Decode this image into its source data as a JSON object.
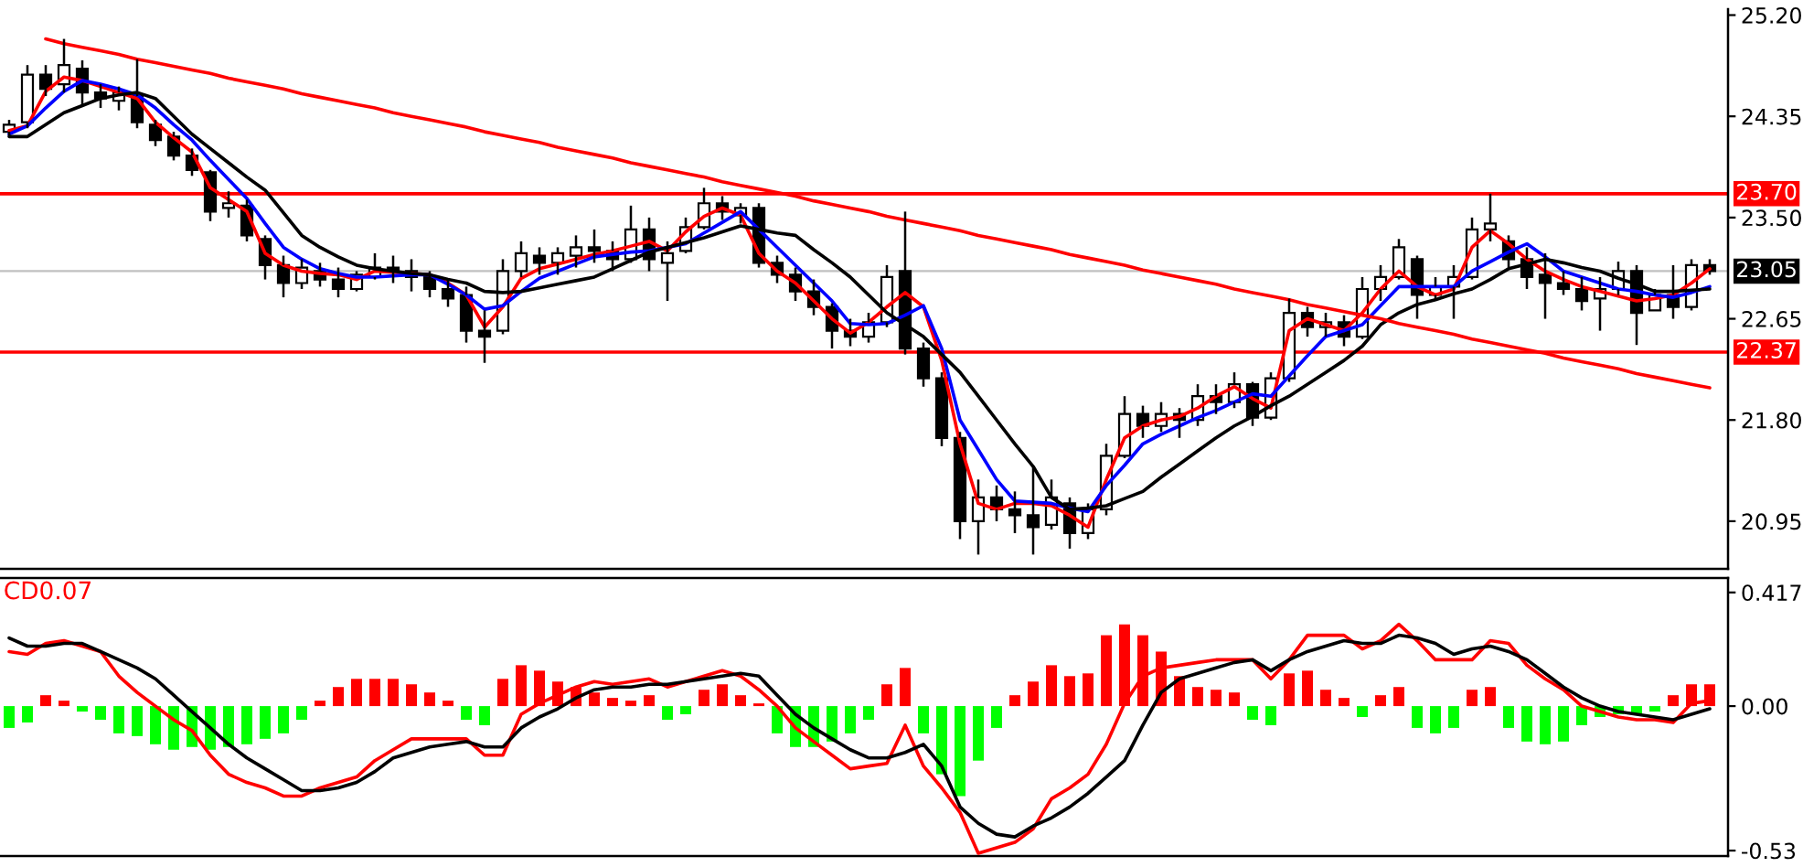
{
  "chart_data": [
    {
      "type": "candlestick",
      "categories": [
        null,
        null,
        null,
        null,
        null,
        null,
        null,
        null,
        null,
        null,
        null,
        null,
        null,
        null,
        null,
        null,
        null,
        null,
        null,
        null,
        null,
        null,
        null,
        null,
        null,
        null,
        null,
        null,
        null,
        null,
        null,
        null,
        null,
        null,
        null,
        null,
        null,
        null,
        null,
        null,
        null,
        null,
        null,
        null,
        null,
        null,
        null,
        null,
        null,
        null,
        null,
        null,
        null,
        null,
        null,
        null,
        null,
        null,
        null,
        null,
        null,
        null,
        null,
        null,
        null,
        null,
        null,
        null,
        null,
        null,
        null,
        null,
        null,
        null,
        null,
        null,
        null,
        null,
        null,
        null,
        null,
        null,
        null,
        null,
        null,
        null,
        null,
        null,
        null,
        null,
        null,
        null,
        null,
        null
      ],
      "ohlc": [
        [
          24.22,
          24.32,
          24.18,
          24.28
        ],
        [
          24.3,
          24.78,
          24.25,
          24.7
        ],
        [
          24.7,
          24.78,
          24.52,
          24.58
        ],
        [
          24.62,
          25.0,
          24.55,
          24.78
        ],
        [
          24.75,
          24.82,
          24.45,
          24.55
        ],
        [
          24.55,
          24.62,
          24.42,
          24.5
        ],
        [
          24.48,
          24.6,
          24.4,
          24.55
        ],
        [
          24.52,
          24.83,
          24.25,
          24.3
        ],
        [
          24.28,
          24.32,
          24.1,
          24.15
        ],
        [
          24.18,
          24.22,
          23.98,
          24.02
        ],
        [
          24.02,
          24.08,
          23.85,
          23.9
        ],
        [
          23.88,
          23.9,
          23.47,
          23.55
        ],
        [
          23.58,
          23.72,
          23.5,
          23.62
        ],
        [
          23.6,
          23.65,
          23.3,
          23.35
        ],
        [
          23.32,
          23.35,
          22.98,
          23.1
        ],
        [
          23.1,
          23.18,
          22.83,
          22.95
        ],
        [
          22.95,
          23.15,
          22.9,
          23.08
        ],
        [
          23.05,
          23.12,
          22.92,
          22.98
        ],
        [
          22.98,
          23.08,
          22.83,
          22.9
        ],
        [
          22.9,
          23.05,
          22.88,
          23.02
        ],
        [
          23.0,
          23.2,
          22.98,
          23.08
        ],
        [
          23.08,
          23.18,
          22.95,
          23.05
        ],
        [
          23.05,
          23.15,
          22.88,
          23.0
        ],
        [
          23.0,
          23.05,
          22.83,
          22.9
        ],
        [
          22.9,
          22.97,
          22.75,
          22.82
        ],
        [
          22.85,
          22.92,
          22.45,
          22.55
        ],
        [
          22.55,
          22.72,
          22.28,
          22.5
        ],
        [
          22.55,
          23.15,
          22.52,
          23.05
        ],
        [
          23.05,
          23.3,
          23.0,
          23.2
        ],
        [
          23.18,
          23.25,
          23.02,
          23.12
        ],
        [
          23.12,
          23.25,
          23.02,
          23.2
        ],
        [
          23.18,
          23.35,
          23.08,
          23.25
        ],
        [
          23.25,
          23.4,
          23.12,
          23.22
        ],
        [
          23.22,
          23.3,
          23.05,
          23.15
        ],
        [
          23.15,
          23.6,
          23.12,
          23.4
        ],
        [
          23.4,
          23.5,
          23.05,
          23.15
        ],
        [
          23.12,
          23.3,
          22.8,
          23.2
        ],
        [
          23.22,
          23.5,
          23.2,
          23.42
        ],
        [
          23.42,
          23.75,
          23.4,
          23.62
        ],
        [
          23.62,
          23.68,
          23.48,
          23.55
        ],
        [
          23.52,
          23.62,
          23.45,
          23.58
        ],
        [
          23.58,
          23.62,
          23.08,
          23.12
        ],
        [
          23.12,
          23.18,
          22.95,
          23.02
        ],
        [
          23.02,
          23.08,
          22.8,
          22.88
        ],
        [
          22.88,
          22.98,
          22.68,
          22.75
        ],
        [
          22.75,
          22.78,
          22.4,
          22.55
        ],
        [
          22.55,
          22.65,
          22.42,
          22.5
        ],
        [
          22.5,
          22.7,
          22.45,
          22.62
        ],
        [
          22.62,
          23.1,
          22.58,
          23.0
        ],
        [
          23.05,
          23.55,
          22.35,
          22.4
        ],
        [
          22.4,
          22.45,
          22.08,
          22.15
        ],
        [
          22.15,
          22.2,
          21.58,
          21.65
        ],
        [
          21.65,
          21.7,
          20.8,
          20.95
        ],
        [
          20.95,
          21.3,
          20.67,
          21.15
        ],
        [
          21.15,
          21.25,
          20.95,
          21.05
        ],
        [
          21.05,
          21.2,
          20.85,
          21.0
        ],
        [
          21.0,
          21.4,
          20.67,
          20.9
        ],
        [
          20.92,
          21.3,
          20.88,
          21.15
        ],
        [
          21.1,
          21.15,
          20.72,
          20.85
        ],
        [
          20.85,
          21.1,
          20.8,
          21.05
        ],
        [
          21.05,
          21.6,
          21.0,
          21.5
        ],
        [
          21.5,
          22.0,
          21.48,
          21.85
        ],
        [
          21.85,
          21.92,
          21.65,
          21.75
        ],
        [
          21.75,
          21.95,
          21.7,
          21.85
        ],
        [
          21.85,
          21.9,
          21.65,
          21.8
        ],
        [
          21.8,
          22.1,
          21.75,
          22.0
        ],
        [
          22.0,
          22.1,
          21.85,
          21.95
        ],
        [
          21.95,
          22.2,
          21.9,
          22.1
        ],
        [
          22.1,
          22.12,
          21.75,
          21.82
        ],
        [
          21.82,
          22.2,
          21.8,
          22.15
        ],
        [
          22.15,
          22.82,
          22.12,
          22.7
        ],
        [
          22.7,
          22.75,
          22.5,
          22.58
        ],
        [
          22.58,
          22.7,
          22.5,
          22.62
        ],
        [
          22.62,
          22.68,
          22.42,
          22.5
        ],
        [
          22.5,
          23.0,
          22.48,
          22.9
        ],
        [
          22.9,
          23.1,
          22.8,
          23.0
        ],
        [
          23.0,
          23.32,
          22.98,
          23.25
        ],
        [
          23.15,
          23.18,
          22.65,
          22.85
        ],
        [
          22.85,
          23.0,
          22.8,
          22.92
        ],
        [
          22.92,
          23.1,
          22.65,
          23.0
        ],
        [
          23.0,
          23.5,
          22.98,
          23.4
        ],
        [
          23.4,
          23.7,
          23.3,
          23.45
        ],
        [
          23.3,
          23.35,
          23.08,
          23.15
        ],
        [
          23.15,
          23.25,
          22.9,
          23.0
        ],
        [
          23.02,
          23.2,
          22.65,
          22.95
        ],
        [
          22.95,
          23.05,
          22.85,
          22.9
        ],
        [
          22.9,
          23.0,
          22.72,
          22.8
        ],
        [
          22.82,
          23.0,
          22.55,
          22.9
        ],
        [
          22.9,
          23.13,
          22.85,
          23.05
        ],
        [
          23.05,
          23.1,
          22.43,
          22.7
        ],
        [
          22.72,
          22.9,
          22.72,
          22.85
        ],
        [
          22.85,
          23.1,
          22.65,
          22.75
        ],
        [
          22.75,
          23.15,
          22.72,
          23.1
        ],
        [
          23.1,
          23.15,
          23.02,
          23.05
        ]
      ],
      "series": [
        {
          "type": "line",
          "color": "#ff0000",
          "values": [
            24.23,
            24.27,
            24.56,
            24.68,
            24.65,
            24.6,
            24.55,
            24.5,
            24.3,
            24.17,
            24.05,
            23.75,
            23.65,
            23.55,
            23.2,
            23.1,
            23.05,
            23.03,
            23.02,
            22.98,
            23.05,
            23.04,
            23.03,
            23.02,
            22.95,
            22.85,
            22.58,
            22.75,
            22.99,
            23.07,
            23.11,
            23.15,
            23.19,
            23.22,
            23.26,
            23.3,
            23.22,
            23.38,
            23.51,
            23.58,
            23.52,
            23.2,
            23.05,
            22.95,
            22.8,
            22.65,
            22.53,
            22.62,
            22.75,
            22.87,
            22.75,
            22.3,
            21.6,
            21.1,
            21.05,
            21.1,
            21.1,
            21.08,
            21.0,
            20.9,
            21.3,
            21.65,
            21.75,
            21.8,
            21.83,
            21.9,
            22.0,
            22.08,
            21.98,
            21.9,
            22.55,
            22.65,
            22.6,
            22.55,
            22.7,
            22.9,
            23.05,
            22.92,
            22.85,
            22.9,
            23.25,
            23.39,
            23.28,
            23.15,
            23.05,
            22.98,
            22.92,
            22.88,
            22.84,
            22.8,
            22.82,
            22.85,
            22.95,
            23.07
          ]
        },
        {
          "type": "line",
          "color": "#0000ff",
          "values": [
            24.2,
            24.27,
            24.42,
            24.56,
            24.65,
            24.62,
            24.58,
            24.53,
            24.42,
            24.28,
            24.15,
            23.98,
            23.82,
            23.66,
            23.45,
            23.25,
            23.15,
            23.07,
            23.03,
            23.0,
            23.0,
            23.01,
            23.02,
            23.02,
            22.94,
            22.85,
            22.73,
            22.76,
            22.88,
            22.99,
            23.05,
            23.11,
            23.17,
            23.19,
            23.21,
            23.22,
            23.25,
            23.28,
            23.37,
            23.46,
            23.55,
            23.4,
            23.25,
            23.1,
            22.95,
            22.8,
            22.61,
            22.6,
            22.61,
            22.68,
            22.76,
            22.4,
            21.8,
            21.55,
            21.3,
            21.12,
            21.11,
            21.1,
            21.06,
            21.03,
            21.25,
            21.42,
            21.6,
            21.68,
            21.75,
            21.82,
            21.88,
            21.95,
            22.02,
            22.0,
            22.17,
            22.34,
            22.5,
            22.55,
            22.6,
            22.76,
            22.92,
            22.92,
            22.92,
            22.92,
            23.05,
            23.13,
            23.21,
            23.28,
            23.17,
            23.05,
            23.0,
            22.95,
            22.9,
            22.88,
            22.85,
            22.83,
            22.87,
            22.92
          ]
        },
        {
          "type": "line",
          "color": "#000000",
          "values": [
            24.18,
            24.18,
            24.28,
            24.38,
            24.44,
            24.5,
            24.53,
            24.55,
            24.5,
            24.35,
            24.2,
            24.08,
            23.96,
            23.84,
            23.73,
            23.54,
            23.35,
            23.25,
            23.17,
            23.1,
            23.07,
            23.05,
            23.03,
            23.02,
            22.98,
            22.95,
            22.88,
            22.87,
            22.88,
            22.91,
            22.94,
            22.97,
            23.0,
            23.07,
            23.14,
            23.21,
            23.25,
            23.29,
            23.33,
            23.38,
            23.43,
            23.4,
            23.37,
            23.35,
            23.23,
            23.12,
            23.0,
            22.85,
            22.7,
            22.6,
            22.5,
            22.35,
            22.2,
            22.0,
            21.8,
            21.6,
            21.41,
            21.15,
            21.05,
            21.06,
            21.08,
            21.14,
            21.2,
            21.32,
            21.43,
            21.54,
            21.65,
            21.75,
            21.83,
            21.92,
            22.0,
            22.1,
            22.2,
            22.3,
            22.42,
            22.6,
            22.7,
            22.77,
            22.81,
            22.86,
            22.9,
            22.98,
            23.07,
            23.11,
            23.15,
            23.12,
            23.08,
            23.05,
            22.99,
            22.94,
            22.88,
            22.88,
            22.89,
            22.9
          ]
        },
        {
          "type": "line",
          "color": "#ff0000",
          "values": [
            null,
            null,
            25.0,
            24.96,
            24.93,
            24.9,
            24.87,
            24.83,
            24.8,
            24.77,
            24.74,
            24.71,
            24.67,
            24.64,
            24.61,
            24.58,
            24.54,
            24.51,
            24.48,
            24.45,
            24.42,
            24.38,
            24.35,
            24.32,
            24.29,
            24.26,
            24.22,
            24.19,
            24.16,
            24.13,
            24.09,
            24.06,
            24.03,
            24.0,
            23.96,
            23.93,
            23.9,
            23.87,
            23.84,
            23.8,
            23.77,
            23.74,
            23.71,
            23.68,
            23.64,
            23.61,
            23.58,
            23.55,
            23.51,
            23.48,
            23.45,
            23.42,
            23.39,
            23.35,
            23.32,
            23.29,
            23.26,
            23.23,
            23.19,
            23.16,
            23.13,
            23.1,
            23.06,
            23.03,
            23.0,
            22.97,
            22.94,
            22.9,
            22.87,
            22.84,
            22.81,
            22.77,
            22.74,
            22.71,
            22.68,
            22.65,
            22.61,
            22.58,
            22.55,
            22.52,
            22.48,
            22.45,
            22.42,
            22.39,
            22.36,
            22.32,
            22.29,
            22.26,
            22.23,
            22.19,
            22.16,
            22.13,
            22.1,
            22.07
          ]
        }
      ],
      "ref_lines": [
        {
          "axis": "y",
          "value": 23.7,
          "label": "23.70",
          "color": "#ff0000"
        },
        {
          "axis": "y",
          "value": 22.37,
          "label": "22.37",
          "color": "#ff0000"
        },
        {
          "axis": "y",
          "value": 23.05,
          "label": "23.05",
          "color": "#c0c0c0"
        }
      ],
      "ylim": [
        20.55,
        25.25
      ],
      "yticks": [
        {
          "value": 25.2,
          "label": "25.20"
        },
        24.35,
        {
          "value": 23.5,
          "label": "23.50"
        },
        22.65,
        {
          "value": 21.8,
          "label": "21.80"
        },
        20.95
      ],
      "tick_labels": "y"
    },
    {
      "type": "bar",
      "categories": [
        null,
        null,
        null,
        null,
        null,
        null,
        null,
        null,
        null,
        null,
        null,
        null,
        null,
        null,
        null,
        null,
        null,
        null,
        null,
        null,
        null,
        null,
        null,
        null,
        null,
        null,
        null,
        null,
        null,
        null,
        null,
        null,
        null,
        null,
        null,
        null,
        null,
        null,
        null,
        null,
        null,
        null,
        null,
        null,
        null,
        null,
        null,
        null,
        null,
        null,
        null,
        null,
        null,
        null,
        null,
        null,
        null,
        null,
        null,
        null,
        null,
        null,
        null,
        null,
        null,
        null,
        null,
        null,
        null,
        null,
        null,
        null,
        null,
        null,
        null,
        null,
        null,
        null,
        null,
        null,
        null,
        null,
        null,
        null,
        null,
        null,
        null,
        null,
        null,
        null,
        null,
        null,
        null,
        null
      ],
      "annotations": [
        "CD0.07"
      ],
      "series": [
        {
          "type": "bar",
          "color": "#ff0000",
          "values": [
            null,
            null,
            0.04,
            0.02,
            null,
            null,
            null,
            null,
            null,
            null,
            null,
            null,
            null,
            null,
            null,
            null,
            null,
            0.02,
            0.07,
            0.1,
            0.1,
            0.1,
            0.08,
            0.05,
            0.02,
            null,
            null,
            0.1,
            0.15,
            0.13,
            0.09,
            0.07,
            0.05,
            0.03,
            0.02,
            0.04,
            null,
            null,
            0.06,
            0.08,
            0.04,
            0.01,
            null,
            null,
            null,
            null,
            null,
            null,
            0.08,
            0.14,
            null,
            null,
            null,
            null,
            null,
            0.04,
            0.09,
            0.15,
            0.11,
            0.12,
            0.26,
            0.3,
            0.26,
            0.2,
            0.11,
            0.07,
            0.06,
            0.05,
            null,
            null,
            0.12,
            0.13,
            0.06,
            0.03,
            null,
            0.04,
            0.07,
            null,
            null,
            null,
            0.06,
            0.07,
            null,
            null,
            null,
            null,
            null,
            null,
            null,
            null,
            null,
            0.04,
            0.08,
            0.08
          ]
        },
        {
          "type": "bar",
          "color": "#00ff00",
          "values": [
            -0.08,
            -0.06,
            null,
            null,
            -0.02,
            -0.05,
            -0.1,
            -0.11,
            -0.14,
            -0.16,
            -0.15,
            -0.16,
            -0.15,
            -0.14,
            -0.12,
            -0.1,
            -0.05,
            null,
            null,
            null,
            null,
            null,
            null,
            null,
            null,
            -0.05,
            -0.07,
            null,
            null,
            null,
            null,
            null,
            null,
            null,
            null,
            null,
            -0.05,
            -0.03,
            null,
            null,
            null,
            null,
            -0.1,
            -0.15,
            -0.15,
            -0.13,
            -0.1,
            -0.05,
            null,
            null,
            -0.1,
            -0.25,
            -0.33,
            -0.2,
            -0.08,
            null,
            null,
            null,
            null,
            null,
            null,
            null,
            null,
            null,
            null,
            null,
            null,
            null,
            -0.05,
            -0.07,
            null,
            null,
            null,
            null,
            -0.04,
            null,
            null,
            -0.08,
            -0.1,
            -0.08,
            null,
            null,
            -0.08,
            -0.13,
            -0.14,
            -0.13,
            -0.07,
            -0.04,
            -0.03,
            -0.03,
            -0.02,
            null,
            null,
            null
          ]
        },
        {
          "type": "line",
          "color": "#ff0000",
          "values": [
            0.2,
            0.19,
            0.23,
            0.24,
            0.22,
            0.2,
            0.11,
            0.05,
            0.0,
            -0.05,
            -0.09,
            -0.18,
            -0.25,
            -0.28,
            -0.3,
            -0.33,
            -0.33,
            -0.3,
            -0.28,
            -0.26,
            -0.2,
            -0.16,
            -0.12,
            -0.12,
            -0.12,
            -0.12,
            -0.18,
            -0.18,
            -0.03,
            0.01,
            0.04,
            0.07,
            0.09,
            0.08,
            0.09,
            0.1,
            0.07,
            0.09,
            0.11,
            0.13,
            0.11,
            0.06,
            0.0,
            -0.08,
            -0.13,
            -0.18,
            -0.23,
            -0.22,
            -0.21,
            -0.07,
            -0.22,
            -0.3,
            -0.39,
            -0.54,
            -0.52,
            -0.5,
            -0.45,
            -0.34,
            -0.3,
            -0.25,
            -0.14,
            0.01,
            0.11,
            0.14,
            0.15,
            0.16,
            0.17,
            0.17,
            0.17,
            0.1,
            0.17,
            0.26,
            0.26,
            0.26,
            0.21,
            0.24,
            0.3,
            0.24,
            0.17,
            0.17,
            0.17,
            0.24,
            0.23,
            0.15,
            0.1,
            0.06,
            0.0,
            -0.02,
            -0.04,
            -0.05,
            -0.05,
            -0.06,
            0.01,
            0.02
          ]
        },
        {
          "type": "line",
          "color": "#000000",
          "values": [
            0.25,
            0.22,
            0.22,
            0.23,
            0.23,
            0.2,
            0.17,
            0.14,
            0.1,
            0.04,
            -0.02,
            -0.08,
            -0.14,
            -0.19,
            -0.23,
            -0.27,
            -0.31,
            -0.31,
            -0.3,
            -0.28,
            -0.24,
            -0.19,
            -0.17,
            -0.15,
            -0.14,
            -0.13,
            -0.15,
            -0.15,
            -0.08,
            -0.04,
            -0.01,
            0.03,
            0.06,
            0.07,
            0.07,
            0.08,
            0.08,
            0.09,
            0.1,
            0.11,
            0.12,
            0.11,
            0.04,
            -0.03,
            -0.08,
            -0.12,
            -0.16,
            -0.19,
            -0.19,
            -0.17,
            -0.14,
            -0.22,
            -0.37,
            -0.43,
            -0.47,
            -0.48,
            -0.44,
            -0.41,
            -0.37,
            -0.32,
            -0.26,
            -0.2,
            -0.07,
            0.05,
            0.1,
            0.12,
            0.14,
            0.16,
            0.17,
            0.13,
            0.17,
            0.2,
            0.22,
            0.24,
            0.23,
            0.23,
            0.26,
            0.25,
            0.23,
            0.19,
            0.21,
            0.22,
            0.2,
            0.17,
            0.12,
            0.07,
            0.03,
            0.0,
            -0.02,
            -0.03,
            -0.04,
            -0.05,
            -0.03,
            -0.01
          ]
        }
      ],
      "ylim": [
        -0.55,
        0.47
      ],
      "yticks": [
        0.417,
        {
          "value": 0,
          "label": "0.00"
        },
        -0.53
      ],
      "tick_labels": "y"
    }
  ]
}
